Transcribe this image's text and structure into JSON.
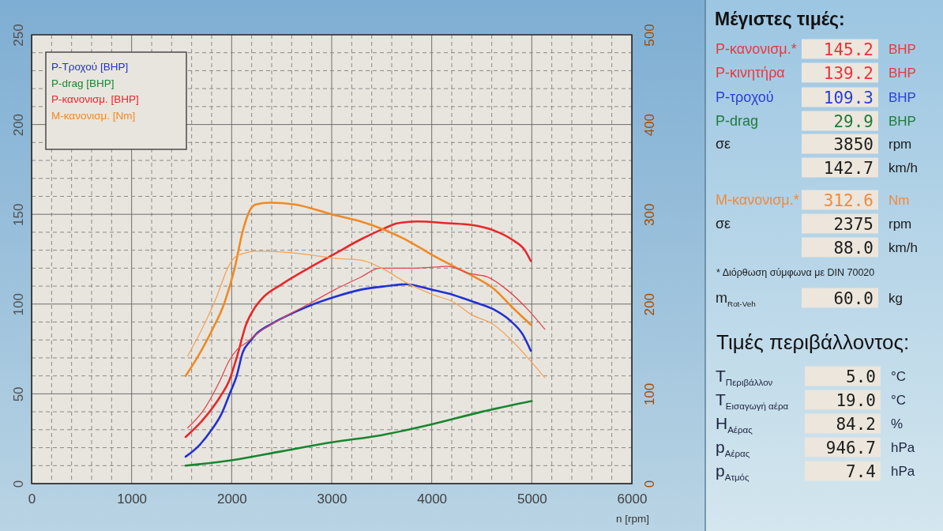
{
  "chart_data": [
    {
      "type": "line",
      "xlabel": "n [rpm]",
      "xlim": [
        0,
        6000
      ],
      "xticks": [
        0,
        {
          "value": 200,
          "label": null
        },
        {
          "value": 400,
          "label": null
        },
        {
          "value": 600,
          "label": null
        },
        {
          "value": 800,
          "label": null
        },
        1000,
        {
          "value": 1200,
          "label": null
        },
        {
          "value": 1400,
          "label": null
        },
        {
          "value": 1600,
          "label": null
        },
        {
          "value": 1800,
          "label": null
        },
        2000,
        {
          "value": 2200,
          "label": null
        },
        {
          "value": 2400,
          "label": null
        },
        {
          "value": 2600,
          "label": null
        },
        {
          "value": 2800,
          "label": null
        },
        3000,
        {
          "value": 3200,
          "label": null
        },
        {
          "value": 3400,
          "label": null
        },
        {
          "value": 3600,
          "label": null
        },
        {
          "value": 3800,
          "label": null
        },
        4000,
        {
          "value": 4200,
          "label": null
        },
        {
          "value": 4400,
          "label": null
        },
        {
          "value": 4600,
          "label": null
        },
        {
          "value": 4800,
          "label": null
        },
        5000,
        {
          "value": 5200,
          "label": null
        },
        {
          "value": 5400,
          "label": null
        },
        {
          "value": 5600,
          "label": null
        },
        {
          "value": 5800,
          "label": null
        },
        6000
      ],
      "ylim": [
        0,
        250
      ],
      "yticks": [
        0,
        {
          "value": 10,
          "label": null
        },
        {
          "value": 20,
          "label": null
        },
        {
          "value": 30,
          "label": null
        },
        {
          "value": 40,
          "label": null
        },
        50,
        {
          "value": 60,
          "label": null
        },
        {
          "value": 70,
          "label": null
        },
        {
          "value": 80,
          "label": null
        },
        {
          "value": 90,
          "label": null
        },
        100,
        {
          "value": 110,
          "label": null
        },
        {
          "value": 120,
          "label": null
        },
        {
          "value": 130,
          "label": null
        },
        {
          "value": 140,
          "label": null
        },
        150,
        {
          "value": 160,
          "label": null
        },
        {
          "value": 170,
          "label": null
        },
        {
          "value": 180,
          "label": null
        },
        {
          "value": 190,
          "label": null
        },
        200,
        {
          "value": 210,
          "label": null
        },
        {
          "value": 220,
          "label": null
        },
        {
          "value": 230,
          "label": null
        },
        {
          "value": 240,
          "label": null
        },
        250
      ],
      "y2lim": [
        0,
        500
      ],
      "y2ticks": [
        0,
        100,
        200,
        300,
        400,
        500
      ],
      "grid": true,
      "legend": "top left",
      "series": [
        {
          "name": "P-Τροχού [BHP]",
          "color": "#2231d4",
          "x": [
            1540,
            1670,
            1800,
            1900,
            1980,
            2050,
            2110,
            2180,
            2240,
            2400,
            2610,
            2820,
            3030,
            3290,
            3550,
            3740,
            4000,
            4220,
            4430,
            4620,
            4780,
            4910,
            4990
          ],
          "values": [
            15,
            21,
            30,
            39,
            50,
            60,
            73,
            79,
            83,
            89,
            95,
            100,
            104,
            108,
            110,
            111,
            108,
            105,
            101,
            97,
            91,
            83,
            74
          ]
        },
        {
          "name": "P-drag [BHP]",
          "color": "#17862f",
          "x": [
            1540,
            2000,
            2500,
            3000,
            3500,
            4000,
            4500,
            5000
          ],
          "values": [
            10,
            13,
            18,
            23,
            27,
            33,
            40,
            46
          ]
        },
        {
          "name": "P-κανονισμ. [BHP]",
          "color": "#e8262a",
          "x": [
            1540,
            1720,
            1880,
            1980,
            2060,
            2140,
            2220,
            2320,
            2500,
            2770,
            3030,
            3290,
            3520,
            3660,
            3850,
            4160,
            4400,
            4620,
            4800,
            4930,
            4990
          ],
          "values": [
            26,
            36,
            48,
            58,
            72,
            88,
            97,
            104,
            111,
            120,
            128,
            136,
            142,
            145,
            146,
            145,
            144,
            141,
            136,
            130,
            124
          ]
        },
        {
          "name": "M-κανονισμ. [Nm]",
          "color": "#f08a24",
          "axis": "y2",
          "x": [
            1540,
            1670,
            1800,
            1930,
            2030,
            2110,
            2180,
            2240,
            2380,
            2630,
            3000,
            3290,
            3520,
            3770,
            4000,
            4220,
            4430,
            4620,
            4800,
            4990
          ],
          "values": [
            120,
            143,
            170,
            202,
            240,
            281,
            304,
            311,
            313,
            311,
            300,
            292,
            283,
            270,
            255,
            242,
            230,
            217,
            197,
            177
          ]
        },
        {
          "color": "#e0484e",
          "x": [
            1560,
            1720,
            1880,
            1980,
            2060,
            2160,
            2240,
            2500,
            2770,
            3030,
            3290,
            3480,
            3850,
            4160,
            4380,
            4560,
            4750,
            4960,
            5130
          ],
          "values": [
            31,
            41,
            57,
            69,
            75,
            79,
            83,
            92,
            100,
            108,
            115,
            120,
            120,
            121,
            117,
            115,
            108,
            97,
            86
          ]
        },
        {
          "color": "#f2a45a",
          "axis": "y2",
          "x": [
            1560,
            1720,
            1850,
            1960,
            2030,
            2110,
            2240,
            2500,
            2770,
            3030,
            3290,
            3500,
            3760,
            4000,
            4220,
            4400,
            4620,
            4830,
            5000,
            5130
          ],
          "values": [
            142,
            176,
            208,
            240,
            252,
            256,
            259,
            258,
            255,
            251,
            249,
            240,
            223,
            211,
            202,
            188,
            177,
            156,
            135,
            118
          ]
        }
      ]
    },
    {
      "type": "other",
      "title": "Μέγιστες τιμές:",
      "annotations": [
        "P-κανονισμ.*",
        "145.2",
        "BHP",
        "P-κινητήρα",
        "139.2",
        "BHP",
        "P-τροχού",
        "109.3",
        "BHP",
        "P-drag",
        "29.9",
        "BHP",
        "σε",
        "3850",
        "rpm",
        "142.7",
        "km/h",
        "M-κανονισμ.*",
        "312.6",
        "Nm",
        "σε",
        "2375",
        "rpm",
        "88.0",
        "km/h",
        "* Διόρθωση σύμφωνα με DIN 70020",
        "m$_{Rot-Veh}$",
        "60.0",
        "kg"
      ],
      "colors": [
        "#e63a3f",
        "#f0303a",
        "#e63a3f",
        "#e63a3f",
        "#f0303a",
        "#e63a3f",
        "#2a3fd6",
        "#2a3fd6",
        "#2a3fd6",
        "#1f7a3a",
        "#1f7a3a",
        "#1f7a3a",
        "#1c1c1c",
        "#1c1c1c",
        "#1c1c1c",
        "#1c1c1c",
        "#1c1c1c",
        "#f08a3c",
        "#f08a3c",
        "#f08a3c",
        "#1c1c1c",
        "#1c1c1c",
        "#1c1c1c",
        "#1c1c1c",
        "#1c1c1c",
        "#1c1c1c",
        "#1c1c1c",
        "#1c1c1c",
        "#1c1c1c"
      ]
    },
    {
      "type": "other",
      "title": "Τιμές περιβάλλοντος:",
      "annotations": [
        "T$_{Περιβάλλον}$",
        "5.0",
        "°C",
        "T$_{Εισαγωγή αέρα}$",
        "19.0",
        "°C",
        "H$_{Αέρας}$",
        "84.2",
        "%",
        "p$_{Αέρας}$",
        "946.7",
        "hPa",
        "p$_{Ατμός}$",
        "7.4",
        "hPa"
      ],
      "colors": [
        "#1c2440",
        "#1c1c1c",
        "#1c2440",
        "#1c2440",
        "#1c1c1c",
        "#1c2440",
        "#1c2440",
        "#1c1c1c",
        "#1c2440",
        "#1c2440",
        "#1c1c1c",
        "#1c2440",
        "#1c2440",
        "#1c1c1c",
        "#1c2440"
      ]
    }
  ]
}
